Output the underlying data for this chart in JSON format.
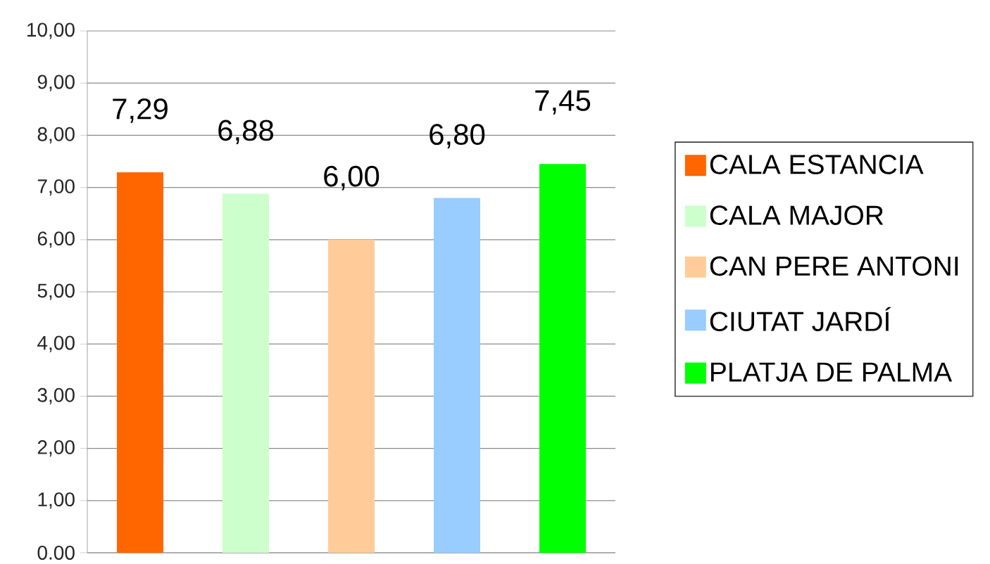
{
  "chart_data": {
    "type": "bar",
    "categories": [
      null,
      null,
      null,
      null,
      null
    ],
    "series": [
      {
        "name": "CALA ESTANCIA",
        "color": "#ff6600",
        "values": [
          7.29,
          null,
          null,
          null,
          null
        ],
        "value_labels": [
          "7,29",
          null,
          null,
          null,
          null
        ]
      },
      {
        "name": "CALA MAJOR",
        "color": "#ccffcc",
        "values": [
          null,
          6.88,
          null,
          null,
          null
        ],
        "value_labels": [
          null,
          "6,88",
          null,
          null,
          null
        ]
      },
      {
        "name": "CAN PERE ANTONI",
        "color": "#ffcc99",
        "values": [
          null,
          null,
          6.0,
          null,
          null
        ],
        "value_labels": [
          null,
          null,
          "6,00",
          null,
          null
        ]
      },
      {
        "name": "CIUTAT JARDÍ",
        "color": "#99ccff",
        "values": [
          null,
          null,
          null,
          6.8,
          null
        ],
        "value_labels": [
          null,
          null,
          null,
          "6,80",
          null
        ]
      },
      {
        "name": "PLATJA DE PALMA",
        "color": "#00ff00",
        "values": [
          null,
          null,
          null,
          null,
          7.45
        ],
        "value_labels": [
          null,
          null,
          null,
          null,
          "7,45"
        ]
      }
    ],
    "ylim": [
      0,
      10
    ],
    "yticks": [
      {
        "value": 0,
        "label": "0.00"
      },
      {
        "value": 1,
        "label": "1,00"
      },
      {
        "value": 2,
        "label": "2,00"
      },
      {
        "value": 3,
        "label": "3,00"
      },
      {
        "value": 4,
        "label": "4,00"
      },
      {
        "value": 5,
        "label": "5,00"
      },
      {
        "value": 6,
        "label": "6,00"
      },
      {
        "value": 7,
        "label": "7,00"
      },
      {
        "value": 8,
        "label": "8,00"
      },
      {
        "value": 9,
        "label": "9,00"
      },
      {
        "value": 10,
        "label": "10,00"
      }
    ],
    "grid": "y",
    "legend": "right",
    "tick_labels": "y"
  }
}
